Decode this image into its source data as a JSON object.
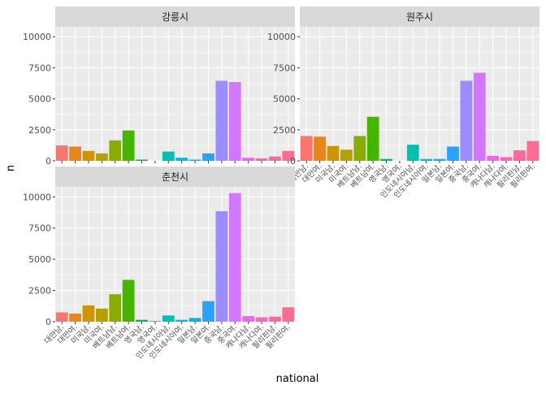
{
  "chart_data": {
    "type": "bar",
    "xlabel": "national",
    "ylabel": "n",
    "ylim": [
      0,
      10800
    ],
    "yticks": [
      0,
      2500,
      5000,
      7500,
      10000
    ],
    "categories": [
      "대만남.",
      "대만여.",
      "미국남.",
      "미국여.",
      "베트남남.",
      "베트남여.",
      "영국남.",
      "영국여.",
      "인도네시아남.",
      "인도네시아여.",
      "일본남.",
      "일본여.",
      "중국남.",
      "중국여.",
      "캐나다남.",
      "캐나다여.",
      "필리핀남.",
      "필리핀여."
    ],
    "colors": [
      "#F8766D",
      "#E7851E",
      "#D09400",
      "#B2A100",
      "#89AC00",
      "#45B500",
      "#00BC51",
      "#00C087",
      "#00C0B2",
      "#00BCD6",
      "#00B3F2",
      "#29A3FF",
      "#9C8DFF",
      "#D277FF",
      "#F166E8",
      "#FF61C7",
      "#FF689E",
      "#FF6C91"
    ],
    "panels": [
      {
        "name": "강릉시",
        "values": [
          1250,
          1150,
          800,
          600,
          1650,
          2450,
          100,
          0,
          750,
          250,
          100,
          600,
          6450,
          6350,
          250,
          200,
          350,
          800
        ]
      },
      {
        "name": "원주시",
        "values": [
          2000,
          1950,
          1200,
          900,
          2000,
          3550,
          150,
          0,
          1300,
          150,
          150,
          1150,
          6450,
          7100,
          400,
          300,
          850,
          1600
        ]
      },
      {
        "name": "춘천시",
        "values": [
          750,
          650,
          1300,
          1050,
          2200,
          3350,
          150,
          50,
          500,
          150,
          300,
          1650,
          8850,
          10300,
          450,
          350,
          400,
          1150
        ]
      }
    ]
  }
}
